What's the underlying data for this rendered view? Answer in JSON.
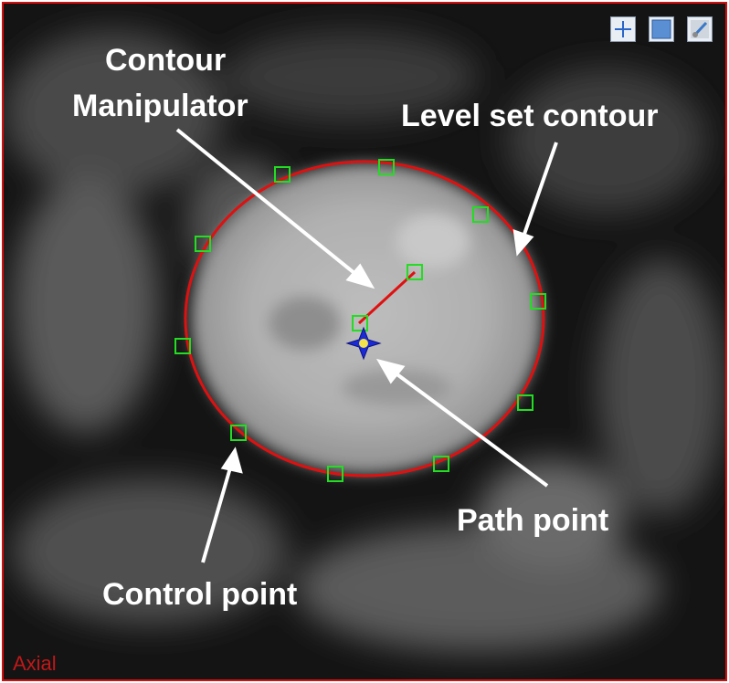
{
  "viewer": {
    "view_label": "Axial",
    "colors": {
      "frame": "#d01010",
      "contour": "#e01010",
      "control_point": "#22dd22",
      "path_point": "#1a2bd6",
      "path_point_center": "#f4e24a"
    }
  },
  "toolbar": {
    "items": [
      {
        "name": "crosshair-tool-button",
        "icon": "crosshair-icon"
      },
      {
        "name": "fill-tool-button",
        "icon": "square-fill-icon"
      },
      {
        "name": "brush-tool-button",
        "icon": "brush-icon"
      }
    ]
  },
  "annotations": {
    "contour_manipulator_line1": "Contour",
    "contour_manipulator_line2": "Manipulator",
    "level_set_contour": "Level set contour",
    "path_point": "Path point",
    "control_point": "Control point"
  },
  "control_points_count": 12
}
